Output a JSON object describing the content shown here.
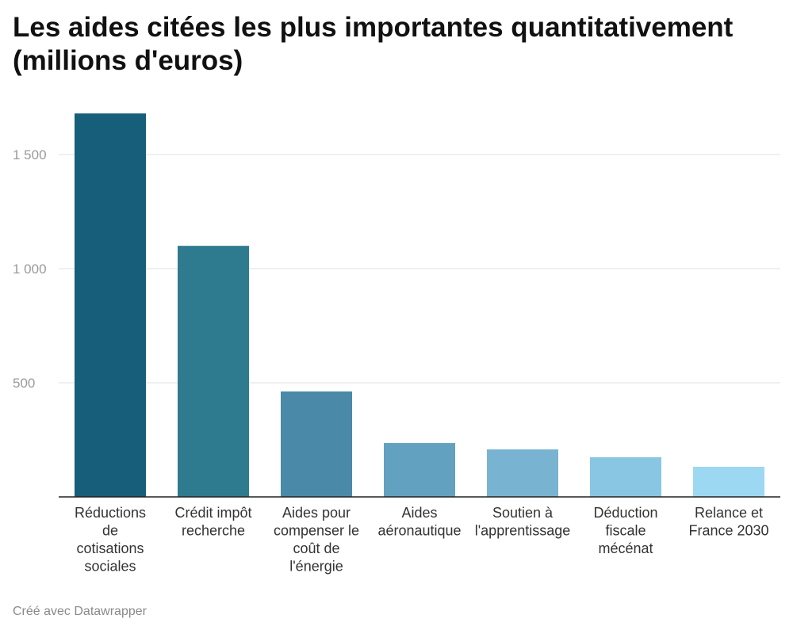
{
  "chart_data": {
    "type": "bar",
    "title": "Les aides citées les plus importantes quantitativement (millions d'euros)",
    "xlabel": "",
    "ylabel": "",
    "ylim": [
      0,
      1700
    ],
    "yticks": [
      {
        "value": 500,
        "label": "500"
      },
      {
        "value": 1000,
        "label": "1 000"
      },
      {
        "value": 1500,
        "label": "1 500"
      }
    ],
    "grid": true,
    "categories": [
      [
        "Réductions",
        "de",
        "cotisations",
        "sociales"
      ],
      [
        "Crédit impôt",
        "recherche"
      ],
      [
        "Aides pour",
        "compenser le",
        "coût de",
        "l'énergie"
      ],
      [
        "Aides",
        "aéronautique"
      ],
      [
        "Soutien à",
        "l'apprentissage"
      ],
      [
        "Déduction",
        "fiscale",
        "mécénat"
      ],
      [
        "Relance et",
        "France 2030"
      ]
    ],
    "values": [
      1680,
      1100,
      462,
      236,
      208,
      174,
      132
    ],
    "colors": [
      "#175e7a",
      "#2e7a8f",
      "#4a8aa8",
      "#63a1c1",
      "#78b3d1",
      "#88c6e4",
      "#9dd8f3"
    ]
  },
  "footer": {
    "credit": "Créé avec Datawrapper"
  }
}
